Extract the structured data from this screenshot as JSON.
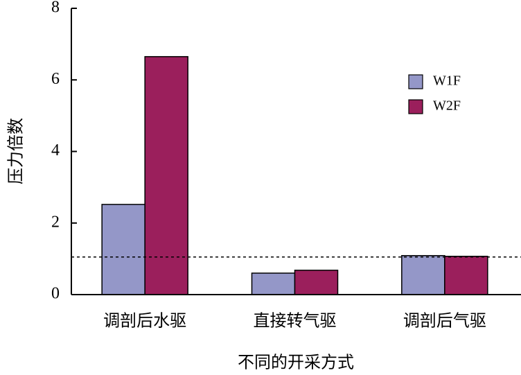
{
  "chart_data": {
    "type": "bar",
    "categories": [
      "调剖后水驱",
      "直接转气驱",
      "调剖后气驱"
    ],
    "series": [
      {
        "name": "W1F",
        "color": "#9497c8",
        "values": [
          2.52,
          0.6,
          1.09
        ]
      },
      {
        "name": "W2F",
        "color": "#9b1f5c",
        "values": [
          6.65,
          0.68,
          1.07
        ]
      }
    ],
    "x_label": "不同的开采方式",
    "y_label": "压力倍数",
    "ylim": [
      0,
      8
    ],
    "yticks": [
      0,
      2,
      4,
      6,
      8
    ],
    "reference_line": 1.05,
    "legend": "upper right"
  }
}
